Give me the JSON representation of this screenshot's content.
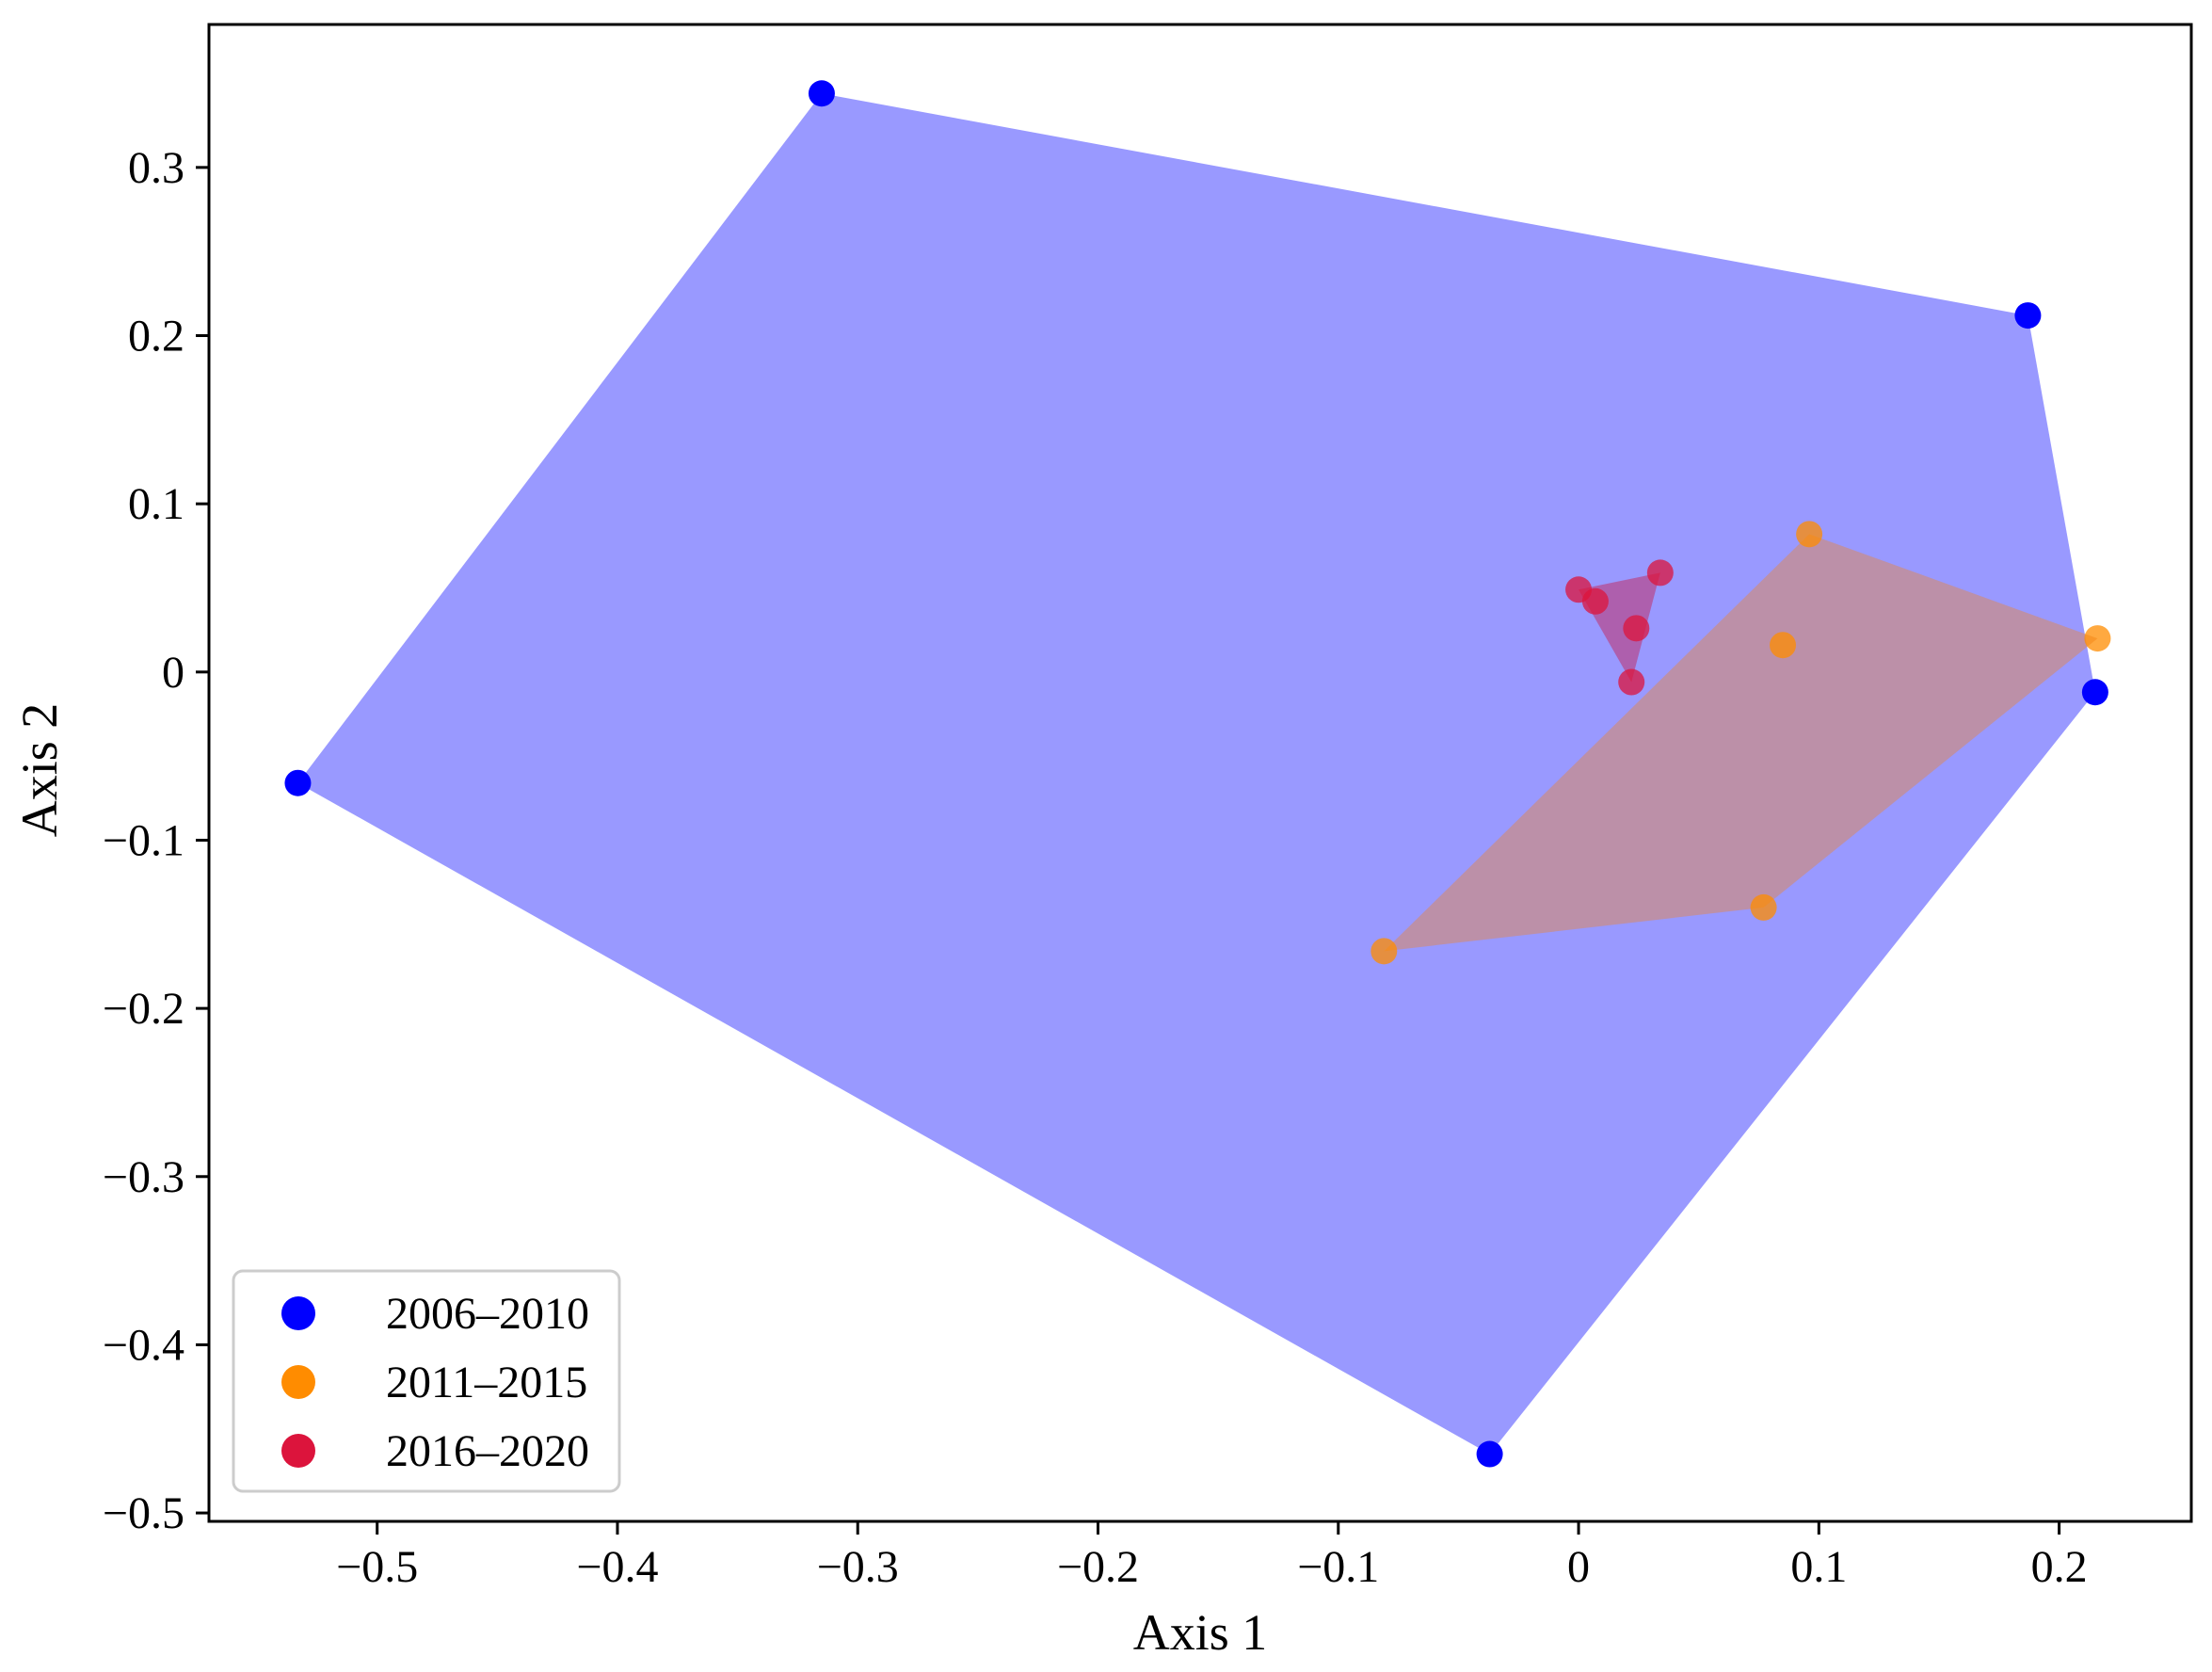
{
  "chart_data": {
    "type": "scatter",
    "title": "",
    "xlabel": "Axis 1",
    "ylabel": "Axis 2",
    "xlim": [
      -0.57,
      0.255
    ],
    "ylim": [
      -0.505,
      0.385
    ],
    "xticks": [
      -0.5,
      -0.4,
      -0.3,
      -0.2,
      -0.1,
      0,
      0.1,
      0.2
    ],
    "xtick_labels": [
      "−0.5",
      "−0.4",
      "−0.3",
      "−0.2",
      "−0.1",
      "0",
      "0.1",
      "0.2"
    ],
    "yticks": [
      0.3,
      0.2,
      0.1,
      0,
      -0.1,
      -0.2,
      -0.3,
      -0.4,
      -0.5
    ],
    "ytick_labels": [
      "0.3",
      "0.2",
      "0.1",
      "0",
      "−0.1",
      "−0.2",
      "−0.3",
      "−0.4",
      "−0.5"
    ],
    "grid": false,
    "legend_position": "lower-left",
    "series": [
      {
        "name": "2006–2010",
        "color": "#0000ff",
        "hull_color": "#9999ff",
        "hull_opacity": 1.0,
        "points": [
          [
            -0.533,
            -0.066
          ],
          [
            -0.315,
            0.344
          ],
          [
            0.187,
            0.212
          ],
          [
            0.215,
            -0.012
          ],
          [
            -0.037,
            -0.465
          ]
        ],
        "hull": [
          [
            -0.533,
            -0.066
          ],
          [
            -0.315,
            0.344
          ],
          [
            0.187,
            0.212
          ],
          [
            0.215,
            -0.012
          ],
          [
            -0.037,
            -0.465
          ]
        ]
      },
      {
        "name": "2011–2015",
        "color": "#ff8c00",
        "hull_color": "#d48a6e",
        "hull_opacity": 0.6,
        "points": [
          [
            -0.081,
            -0.166
          ],
          [
            0.096,
            0.082
          ],
          [
            0.216,
            0.02
          ],
          [
            0.077,
            -0.14
          ],
          [
            0.085,
            0.016
          ]
        ],
        "hull": [
          [
            -0.081,
            -0.166
          ],
          [
            0.096,
            0.082
          ],
          [
            0.216,
            0.02
          ],
          [
            0.077,
            -0.14
          ]
        ]
      },
      {
        "name": "2016–2020",
        "color": "#dc143c",
        "hull_color": "#c0306a",
        "hull_opacity": 0.55,
        "points": [
          [
            0.0,
            0.049
          ],
          [
            0.007,
            0.042
          ],
          [
            0.034,
            0.059
          ],
          [
            0.024,
            0.026
          ],
          [
            0.022,
            -0.006
          ]
        ],
        "hull": [
          [
            0.0,
            0.049
          ],
          [
            0.034,
            0.059
          ],
          [
            0.022,
            -0.006
          ]
        ]
      }
    ]
  }
}
